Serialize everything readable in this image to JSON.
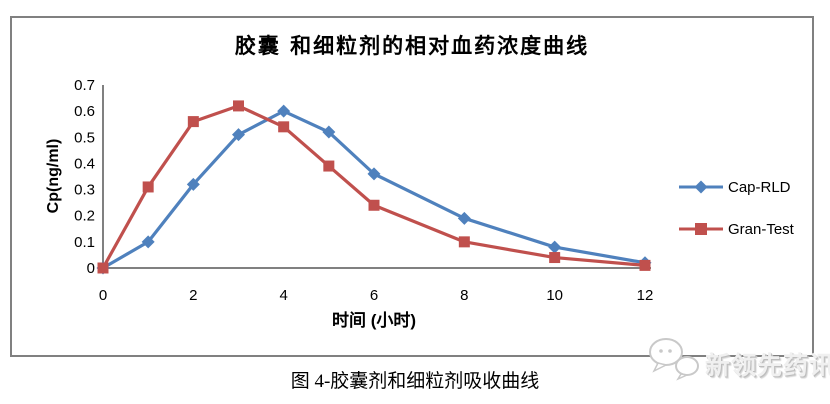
{
  "figure": {
    "caption": "图 4-胶囊剂和细粒剂吸收曲线",
    "watermark_text": "新领先药讯"
  },
  "chart_data": {
    "type": "line",
    "title": "胶囊 和细粒剂的相对血药浓度曲线",
    "xlabel": "时间 (小时)",
    "ylabel": "Cp(ng/ml)",
    "x": [
      0,
      1,
      2,
      3,
      4,
      5,
      6,
      8,
      10,
      12
    ],
    "series": [
      {
        "name": "Cap-RLD",
        "color": "#4F81BD",
        "marker": "diamond",
        "values": [
          0,
          0.1,
          0.32,
          0.51,
          0.6,
          0.52,
          0.36,
          0.19,
          0.08,
          0.02
        ]
      },
      {
        "name": "Gran-Test",
        "color": "#C0504D",
        "marker": "square",
        "values": [
          0,
          0.31,
          0.56,
          0.62,
          0.54,
          0.39,
          0.24,
          0.1,
          0.04,
          0.01
        ]
      }
    ],
    "xticks": [
      "0",
      "2",
      "4",
      "6",
      "8",
      "10",
      "12"
    ],
    "yticks": [
      "0",
      "0.1",
      "0.2",
      "0.3",
      "0.4",
      "0.5",
      "0.6",
      "0.7"
    ],
    "xlim": [
      0,
      12
    ],
    "ylim": [
      0,
      0.7
    ],
    "grid": false,
    "legend_position": "right",
    "colors": {
      "axis": "#808080",
      "frame": "#808080",
      "watermark": "#f0f0f0"
    }
  }
}
